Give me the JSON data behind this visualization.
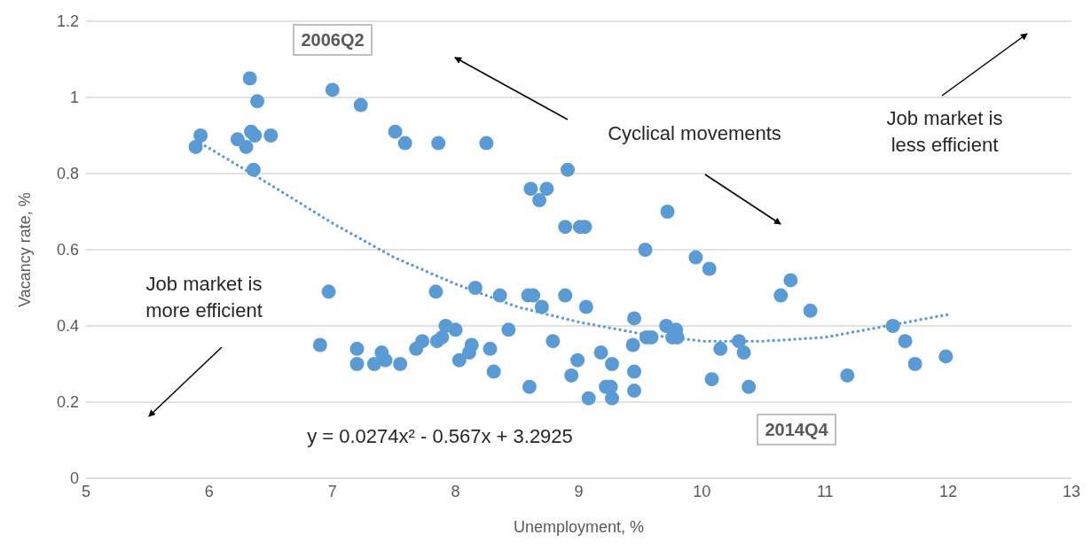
{
  "chart_data": {
    "type": "scatter",
    "xlabel": "Unemployment, %",
    "ylabel": "Vacancy rate, %",
    "xlim": [
      5,
      13
    ],
    "xticks": [
      5,
      6,
      7,
      8,
      9,
      10,
      11,
      12,
      13
    ],
    "ylim": [
      0,
      1.2
    ],
    "yticks": [
      0,
      0.2,
      0.4,
      0.6,
      0.8,
      1,
      1.2
    ],
    "grid": "y",
    "marker": "circle",
    "annotations": [
      "2006Q2",
      "2014Q4",
      "y = 0.0274x² - 0.567x + 3.2925",
      "Cyclical movements",
      "Job market is less efficient",
      "Job market is more efficient"
    ],
    "series": [
      {
        "color": "#5b9bd5",
        "x": [
          5.89,
          5.93,
          6.33,
          6.39,
          6.23,
          6.3,
          6.34,
          6.37,
          6.5,
          6.36,
          7.0,
          7.23,
          7.51,
          7.59,
          7.86,
          8.25,
          8.91,
          8.61,
          8.74,
          8.68,
          8.89,
          9.01,
          9.05,
          9.72,
          9.54,
          9.95,
          10.06,
          6.97,
          6.9,
          7.2,
          7.2,
          7.34,
          7.4,
          7.43,
          7.55,
          7.68,
          7.73,
          7.84,
          7.85,
          7.89,
          7.92,
          8.0,
          8.03,
          8.11,
          8.13,
          8.16,
          8.28,
          8.31,
          8.36,
          8.43,
          8.6,
          8.59,
          8.63,
          8.7,
          8.79,
          8.89,
          8.94,
          8.99,
          9.06,
          9.08,
          9.18,
          9.22,
          9.26,
          9.27,
          9.27,
          9.45,
          9.44,
          9.45,
          9.45,
          9.55,
          9.59,
          9.71,
          9.76,
          9.79,
          9.8,
          10.08,
          10.15,
          10.3,
          10.34,
          10.38,
          10.64,
          10.72,
          10.88,
          11.18,
          11.55,
          11.65,
          11.73,
          11.98
        ],
        "values": [
          0.87,
          0.9,
          1.05,
          0.99,
          0.89,
          0.87,
          0.91,
          0.9,
          0.9,
          0.81,
          1.02,
          0.98,
          0.91,
          0.88,
          0.88,
          0.88,
          0.81,
          0.76,
          0.76,
          0.73,
          0.66,
          0.66,
          0.66,
          0.7,
          0.6,
          0.58,
          0.55,
          0.49,
          0.35,
          0.34,
          0.3,
          0.3,
          0.33,
          0.31,
          0.3,
          0.34,
          0.36,
          0.49,
          0.36,
          0.37,
          0.4,
          0.39,
          0.31,
          0.33,
          0.35,
          0.5,
          0.34,
          0.28,
          0.48,
          0.39,
          0.24,
          0.48,
          0.48,
          0.45,
          0.36,
          0.48,
          0.27,
          0.31,
          0.45,
          0.21,
          0.33,
          0.24,
          0.24,
          0.21,
          0.3,
          0.42,
          0.35,
          0.28,
          0.23,
          0.37,
          0.37,
          0.4,
          0.37,
          0.39,
          0.37,
          0.26,
          0.34,
          0.36,
          0.33,
          0.24,
          0.48,
          0.52,
          0.44,
          0.27,
          0.4,
          0.36,
          0.3,
          0.32
        ]
      },
      {
        "type": "line",
        "color": "#5b9bd5",
        "line_style": "dotted",
        "marker": "none",
        "x": [
          5.93,
          6.5,
          7,
          7.5,
          8,
          8.5,
          9,
          9.5,
          10,
          10.5,
          11,
          11.5,
          12
        ],
        "values": [
          0.88,
          0.77,
          0.67,
          0.58,
          0.51,
          0.45,
          0.41,
          0.38,
          0.36,
          0.36,
          0.37,
          0.4,
          0.43
        ]
      }
    ]
  }
}
